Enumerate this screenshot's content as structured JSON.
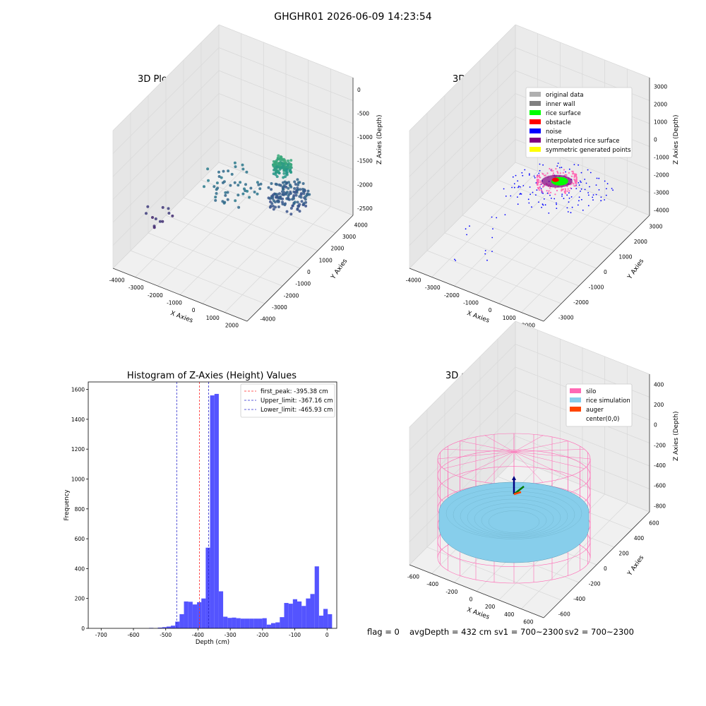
{
  "figure": {
    "title": "GHGHR01 2026-06-09 14:23:54"
  },
  "footer": {
    "flag": "flag = 0",
    "avg_depth": "avgDepth = 432 cm",
    "sv1": "sv1 = 700~2300",
    "sv2": "sv2 = 700~2300"
  },
  "colors": {
    "hist_bar": "#4b4bff",
    "peak_line": "#ff2a2a",
    "limit_line": "#2a2acc",
    "silo": "#ff69b4",
    "rice_sim": "#87ceeb",
    "auger": "#ff4500",
    "original": "#b0b0b0",
    "inner_wall": "#808080",
    "rice_surface": "#00ff00",
    "obstacle": "#ff0000",
    "noise": "#0000ff",
    "interpolated": "#800080",
    "symmetric": "#ffff00"
  },
  "chart_data": [
    {
      "type": "scatter",
      "projection": "3d",
      "title": "3D Plot of Silo Interior(row data)",
      "xlabel": "X Axies",
      "ylabel": "Y Axies",
      "zlabel": "Z Axies (Depth)",
      "xticks": [
        "-4000",
        "-3000",
        "-2000",
        "-1000",
        "0",
        "1000",
        "2000"
      ],
      "yticks": [
        "-4000",
        "-3000",
        "-2000",
        "-1000",
        "0",
        "1000",
        "2000",
        "3000",
        "4000"
      ],
      "zticks": [
        "-2500",
        "-2000",
        "-1500",
        "-1000",
        "-500",
        "0"
      ],
      "xlim": [
        -4200,
        2300
      ],
      "ylim": [
        -4200,
        4200
      ],
      "zlim": [
        -2800,
        200
      ],
      "colormap": "viridis",
      "clusters": [
        {
          "cx": 700,
          "cy": 1200,
          "cz": -1200,
          "r": 400,
          "count": 120
        },
        {
          "cx": 800,
          "cy": 1500,
          "cz": -1900,
          "r": 900,
          "count": 140
        },
        {
          "cx": -1200,
          "cy": 300,
          "cz": -1700,
          "r": 1300,
          "count": 50
        },
        {
          "cx": -3500,
          "cy": -1500,
          "cz": -2300,
          "r": 700,
          "count": 12
        }
      ]
    },
    {
      "type": "scatter",
      "projection": "3d",
      "title": "3D classify of Silo Interior",
      "xlabel": "X Axies",
      "ylabel": "Y Axies",
      "zlabel": "Z Axies (Depth)",
      "xticks": [
        "-4000",
        "-3000",
        "-2000",
        "-1000",
        "0",
        "1000",
        "2000"
      ],
      "yticks": [
        "-3000",
        "-2000",
        "-1000",
        "0",
        "1000",
        "2000",
        "3000"
      ],
      "zticks": [
        "-4000",
        "-3000",
        "-2000",
        "-1000",
        "0",
        "1000",
        "2000",
        "3000"
      ],
      "xlim": [
        -4500,
        2500
      ],
      "ylim": [
        -3500,
        3500
      ],
      "zlim": [
        -4500,
        3200
      ],
      "legend": [
        {
          "label": "original data",
          "color": "#b0b0b0"
        },
        {
          "label": "inner wall",
          "color": "#808080"
        },
        {
          "label": "rice surface",
          "color": "#00ff00"
        },
        {
          "label": "obstacle",
          "color": "#ff0000"
        },
        {
          "label": "noise",
          "color": "#0000ff"
        },
        {
          "label": "interpolated rice surface",
          "color": "#800080"
        },
        {
          "label": "symmetric generated points",
          "color": "#ffff00"
        }
      ],
      "legend_position": "upper-right"
    },
    {
      "type": "bar",
      "title": "Histogram of Z-Axies (Height) Values",
      "xlabel": "Depth (cm)",
      "ylabel": "Frequency",
      "xlim": [
        -740,
        30
      ],
      "ylim": [
        0,
        1650
      ],
      "xticks": [
        -700,
        -600,
        -500,
        -400,
        -300,
        -200,
        -100,
        0
      ],
      "yticks": [
        0,
        200,
        400,
        600,
        800,
        1000,
        1200,
        1400,
        1600
      ],
      "bin_start": -700,
      "bin_width": 13.5,
      "counts": [
        0,
        0,
        0,
        0,
        0,
        0,
        0,
        0,
        0,
        0,
        0,
        3,
        0,
        5,
        8,
        12,
        18,
        45,
        95,
        180,
        178,
        160,
        175,
        200,
        540,
        1560,
        1570,
        248,
        78,
        70,
        72,
        68,
        65,
        65,
        65,
        65,
        65,
        68,
        25,
        35,
        40,
        75,
        170,
        165,
        195,
        180,
        150,
        200,
        230,
        415,
        85,
        130,
        95
      ],
      "vlines": [
        {
          "x": -395.38,
          "label": "first_peak: -395.38 cm",
          "style": "peak"
        },
        {
          "x": -367.16,
          "label": "Upper_limit: -367.16 cm",
          "style": "limit"
        },
        {
          "x": -465.93,
          "label": "Lower_limit: -465.93 cm",
          "style": "limit"
        }
      ],
      "legend_position": "upper-right",
      "grid": false
    },
    {
      "type": "surface",
      "projection": "3d",
      "title": "3D simulation of Silo Interior",
      "xlabel": "X Axies",
      "ylabel": "Y Axies",
      "zlabel": "Z Axies (Depth)",
      "xticks": [
        "-600",
        "-400",
        "-200",
        "0",
        "200",
        "400",
        "600"
      ],
      "yticks": [
        "-600",
        "-400",
        "-200",
        "0",
        "200",
        "400",
        "600"
      ],
      "zticks": [
        "-800",
        "-600",
        "-400",
        "-200",
        "0",
        "200",
        "400"
      ],
      "xlim": [
        -700,
        700
      ],
      "ylim": [
        -700,
        700
      ],
      "zlim": [
        -900,
        450
      ],
      "silo_radius": 650,
      "silo_height_range": [
        -900,
        0
      ],
      "rice_depth": -432,
      "legend": [
        {
          "label": "silo",
          "color": "#ff69b4"
        },
        {
          "label": "rice simulation",
          "color": "#87ceeb"
        },
        {
          "label": "auger",
          "color": "#ff4500"
        },
        {
          "label": "center(0,0)",
          "color": ""
        }
      ],
      "legend_position": "upper-right"
    }
  ]
}
